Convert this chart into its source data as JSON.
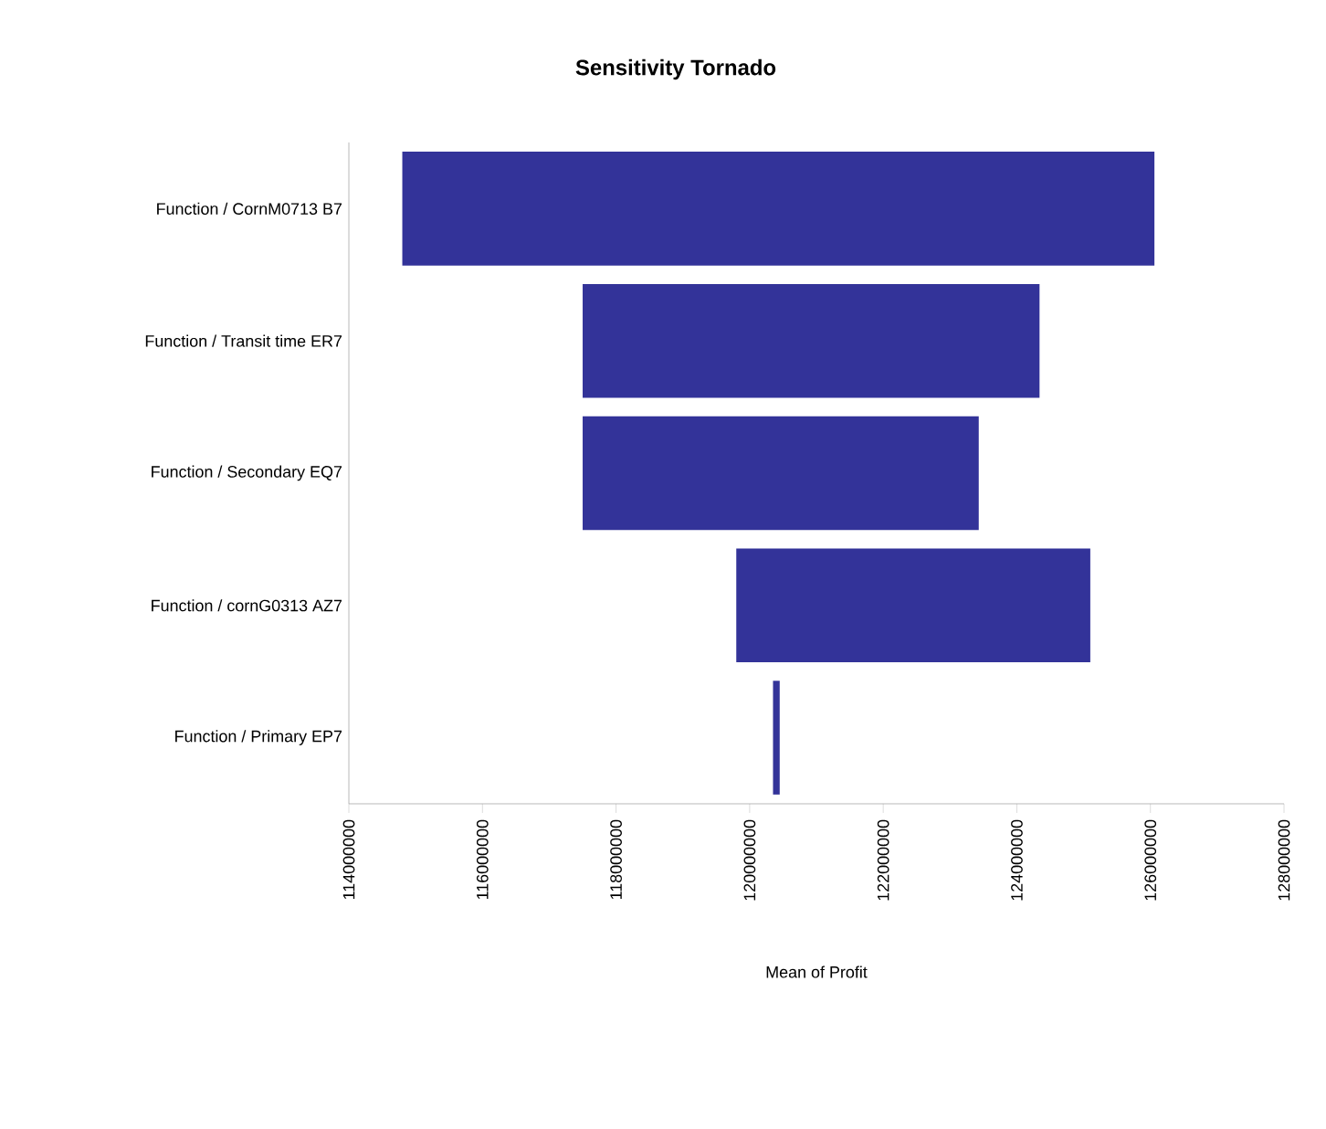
{
  "chart_data": {
    "type": "bar",
    "orientation": "horizontal",
    "title": "Sensitivity Tornado",
    "xlabel": "Mean of Profit",
    "categories": [
      "Function / CornM0713 B7",
      "Function / Transit time ER7",
      "Function / Secondary EQ7",
      "Function / cornG0313 AZ7",
      "Function / Primary EP7"
    ],
    "base": [
      114800000,
      117500000,
      117500000,
      119800000,
      120350000
    ],
    "values": [
      11260000,
      6840000,
      5930000,
      5300000,
      100000
    ],
    "color": "#333399",
    "xlim": [
      114000000,
      128000000
    ],
    "xticks": [
      114000000,
      116000000,
      118000000,
      120000000,
      122000000,
      124000000,
      126000000,
      128000000
    ]
  }
}
